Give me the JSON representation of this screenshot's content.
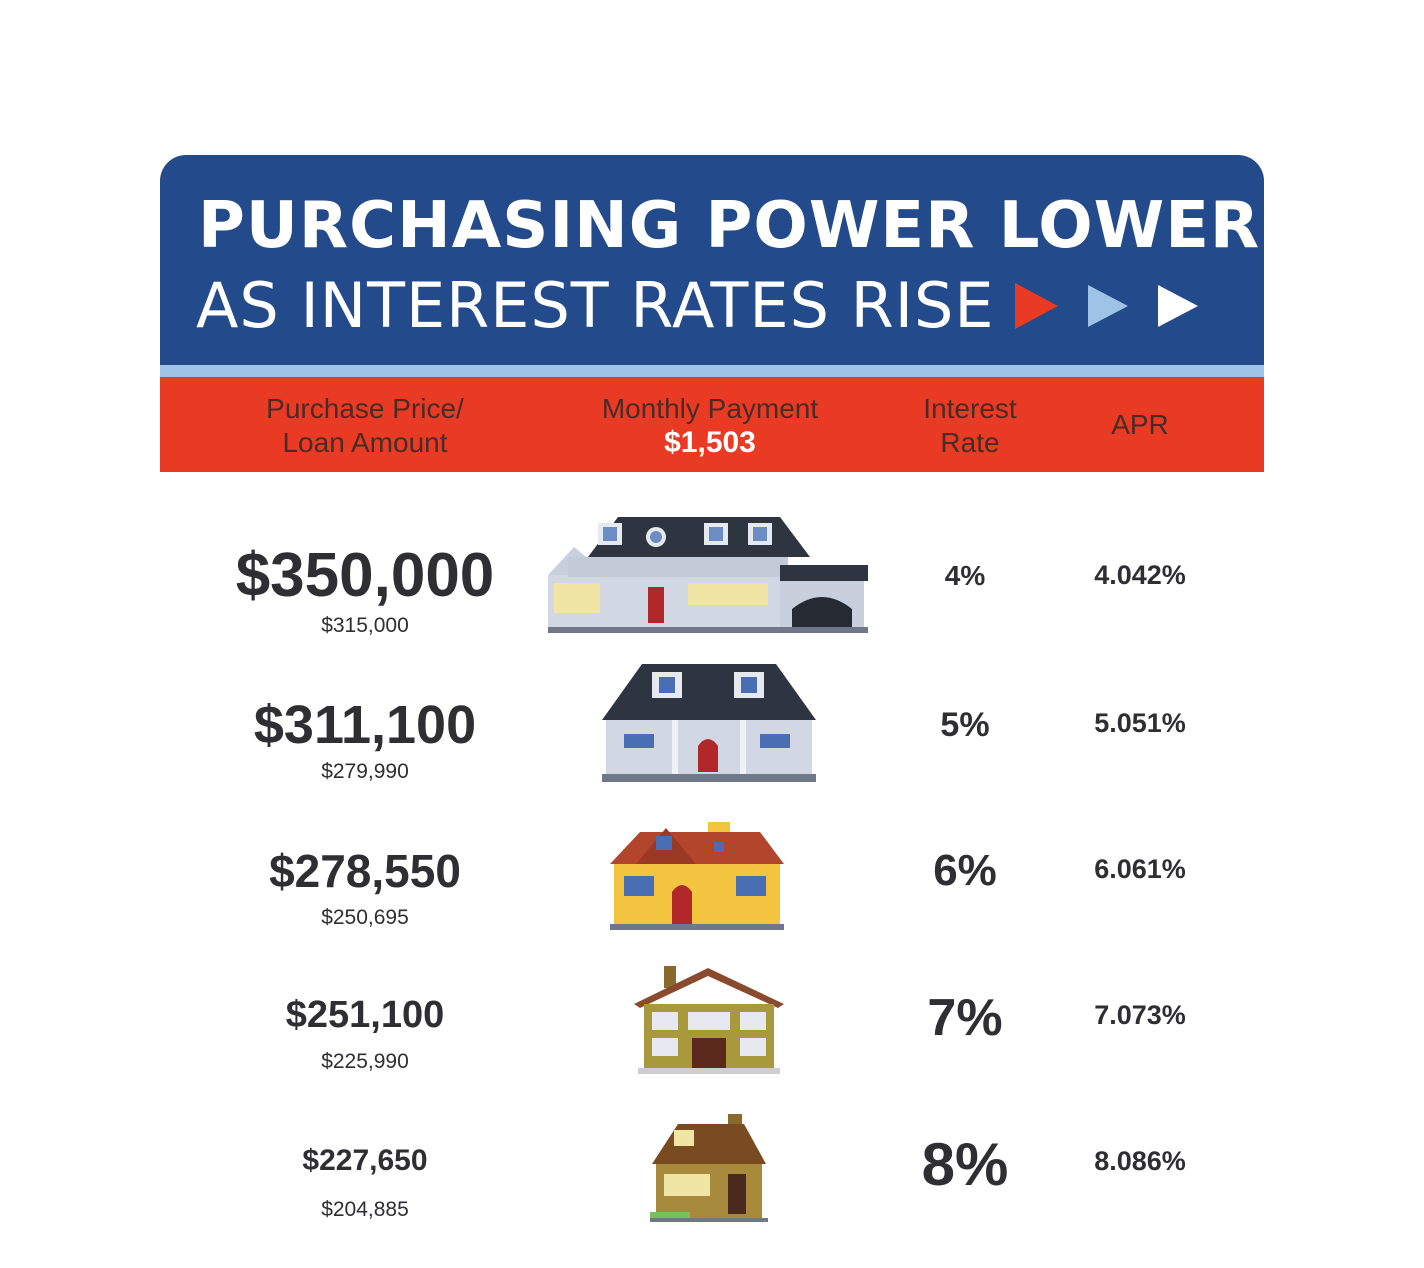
{
  "banner": {
    "title_line1": "PURCHASING POWER LOWERS",
    "title_line2": "AS INTEREST RATES RISE",
    "arrow_colors": [
      "#e93b23",
      "#9ec3e6",
      "#ffffff"
    ]
  },
  "header": {
    "price_label_1": "Purchase Price/",
    "price_label_2": "Loan Amount",
    "payment_label": "Monthly Payment",
    "payment_value": "$1,503",
    "rate_label_1": "Interest",
    "rate_label_2": "Rate",
    "apr_label": "APR"
  },
  "rows": [
    {
      "price": "$350,000",
      "loan": "$315,000",
      "rate": "4%",
      "apr": "4.042%",
      "icon": "large-house-with-garage-icon"
    },
    {
      "price": "$311,100",
      "loan": "$279,990",
      "rate": "5%",
      "apr": "5.051%",
      "icon": "colonial-house-icon"
    },
    {
      "price": "$278,550",
      "loan": "$250,695",
      "rate": "6%",
      "apr": "6.061%",
      "icon": "yellow-house-icon"
    },
    {
      "price": "$251,100",
      "loan": "$225,990",
      "rate": "7%",
      "apr": "7.073%",
      "icon": "olive-house-icon"
    },
    {
      "price": "$227,650",
      "loan": "$204,885",
      "rate": "8%",
      "apr": "8.086%",
      "icon": "small-cottage-icon"
    }
  ],
  "colors": {
    "banner_blue": "#234a8a",
    "header_red": "#e93b23",
    "strip_light_blue": "#9ec3e6",
    "text_dark": "#2e2e33"
  }
}
